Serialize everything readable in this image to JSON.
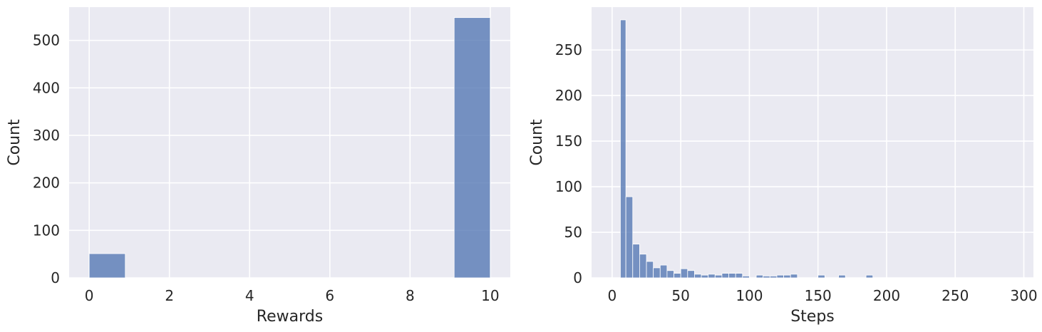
{
  "chart_data": [
    {
      "type": "bar",
      "title": "",
      "xlabel": "Rewards",
      "ylabel": "Count",
      "xlim": [
        -0.5,
        10.5
      ],
      "ylim": [
        0,
        570
      ],
      "xticks": [
        0,
        2,
        4,
        6,
        8,
        10
      ],
      "yticks": [
        0,
        100,
        200,
        300,
        400,
        500
      ],
      "grid": true,
      "bar_color": "#4c72b0",
      "bins": [
        {
          "x0": 0.0,
          "x1": 0.9,
          "count": 51
        },
        {
          "x0": 9.1,
          "x1": 10.0,
          "count": 548
        }
      ]
    },
    {
      "type": "bar",
      "title": "",
      "xlabel": "Steps",
      "ylabel": "Count",
      "xlim": [
        -15,
        307
      ],
      "ylim": [
        0,
        297
      ],
      "xticks": [
        0,
        50,
        100,
        150,
        200,
        250,
        300
      ],
      "yticks": [
        0,
        50,
        100,
        150,
        200,
        250
      ],
      "grid": true,
      "bar_color": "#4c72b0",
      "bins": [
        {
          "x0": 6,
          "x1": 10,
          "count": 283
        },
        {
          "x0": 10,
          "x1": 15,
          "count": 89
        },
        {
          "x0": 15,
          "x1": 20,
          "count": 37
        },
        {
          "x0": 20,
          "x1": 25,
          "count": 26
        },
        {
          "x0": 25,
          "x1": 30,
          "count": 18
        },
        {
          "x0": 30,
          "x1": 35,
          "count": 11
        },
        {
          "x0": 35,
          "x1": 40,
          "count": 14
        },
        {
          "x0": 40,
          "x1": 45,
          "count": 8
        },
        {
          "x0": 45,
          "x1": 50,
          "count": 5
        },
        {
          "x0": 50,
          "x1": 55,
          "count": 10
        },
        {
          "x0": 55,
          "x1": 60,
          "count": 8
        },
        {
          "x0": 60,
          "x1": 65,
          "count": 4
        },
        {
          "x0": 65,
          "x1": 70,
          "count": 3
        },
        {
          "x0": 70,
          "x1": 75,
          "count": 4
        },
        {
          "x0": 75,
          "x1": 80,
          "count": 3
        },
        {
          "x0": 80,
          "x1": 85,
          "count": 5
        },
        {
          "x0": 85,
          "x1": 90,
          "count": 5
        },
        {
          "x0": 90,
          "x1": 95,
          "count": 5
        },
        {
          "x0": 95,
          "x1": 100,
          "count": 2
        },
        {
          "x0": 105,
          "x1": 110,
          "count": 3
        },
        {
          "x0": 110,
          "x1": 115,
          "count": 2
        },
        {
          "x0": 115,
          "x1": 120,
          "count": 2
        },
        {
          "x0": 120,
          "x1": 125,
          "count": 3
        },
        {
          "x0": 125,
          "x1": 130,
          "count": 3
        },
        {
          "x0": 130,
          "x1": 135,
          "count": 4
        },
        {
          "x0": 150,
          "x1": 155,
          "count": 3
        },
        {
          "x0": 165,
          "x1": 170,
          "count": 3
        },
        {
          "x0": 185,
          "x1": 190,
          "count": 3
        }
      ]
    }
  ]
}
